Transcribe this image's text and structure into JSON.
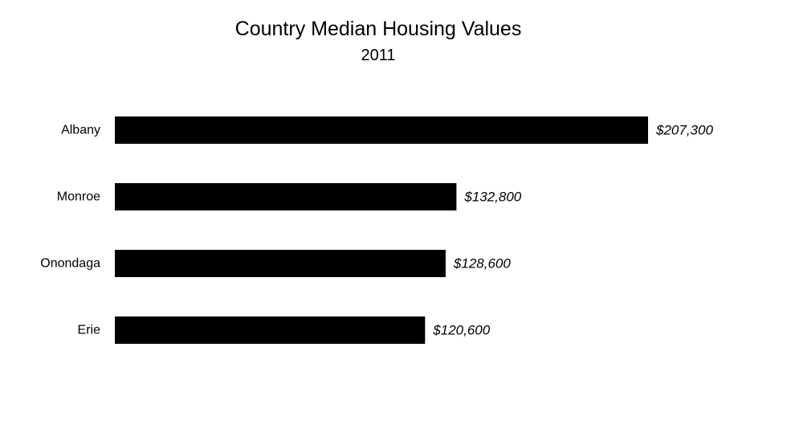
{
  "chart_data": {
    "type": "bar",
    "orientation": "horizontal",
    "title": "Country Median Housing Values",
    "subtitle": "2011",
    "categories": [
      "Albany",
      "Monroe",
      "Onondaga",
      "Erie"
    ],
    "values": [
      207300,
      132800,
      128600,
      120600
    ],
    "value_labels": [
      "$207,300",
      "$132,800",
      "$128,600",
      "$120,600"
    ],
    "xlim": [
      0,
      207300
    ],
    "grid": false,
    "legend": "none",
    "bar_color": "#000000"
  }
}
